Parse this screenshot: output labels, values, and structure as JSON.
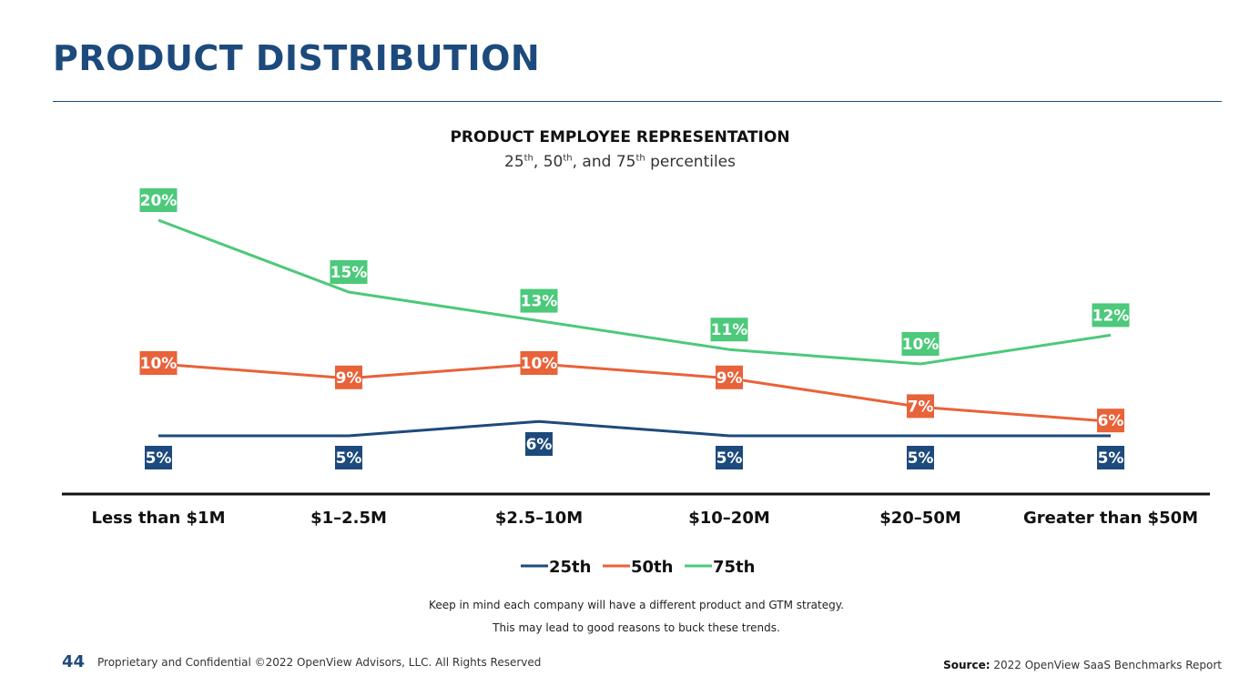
{
  "page": {
    "title": "PRODUCT DISTRIBUTION",
    "page_number": "44",
    "footer": "Proprietary and Confidential ©2022 OpenView Advisors, LLC. All Rights Reserved",
    "source_label": "Source:",
    "source_text": "2022 OpenView SaaS Benchmarks Report",
    "note_line1": "Keep in mind each company will have a different product and GTM strategy.",
    "note_line2": "This may lead to good reasons to buck these trends."
  },
  "chart_heading": {
    "title": "PRODUCT EMPLOYEE REPRESENTATION",
    "subtitle_parts": [
      "25",
      "th",
      ", 50",
      "th",
      ", and 75",
      "th",
      " percentiles"
    ]
  },
  "chart_data": {
    "type": "line",
    "categories": [
      "Less than $1M",
      "$1–2.5M",
      "$2.5–10M",
      "$10–20M",
      "$20–50M",
      "Greater than $50M"
    ],
    "series": [
      {
        "name": "25th",
        "color": "#1d4a7c",
        "values": [
          5,
          5,
          6,
          5,
          5,
          5
        ],
        "labels": [
          "5%",
          "5%",
          "6%",
          "5%",
          "5%",
          "5%"
        ]
      },
      {
        "name": "50th",
        "color": "#e8623a",
        "values": [
          10,
          9,
          10,
          9,
          7,
          6
        ],
        "labels": [
          "10%",
          "9%",
          "10%",
          "9%",
          "7%",
          "6%"
        ]
      },
      {
        "name": "75th",
        "color": "#4cc97a",
        "values": [
          20,
          15,
          13,
          11,
          10,
          12
        ],
        "labels": [
          "20%",
          "15%",
          "13%",
          "11%",
          "10%",
          "12%"
        ]
      }
    ],
    "legend_position": "bottom-center",
    "grid": false
  }
}
